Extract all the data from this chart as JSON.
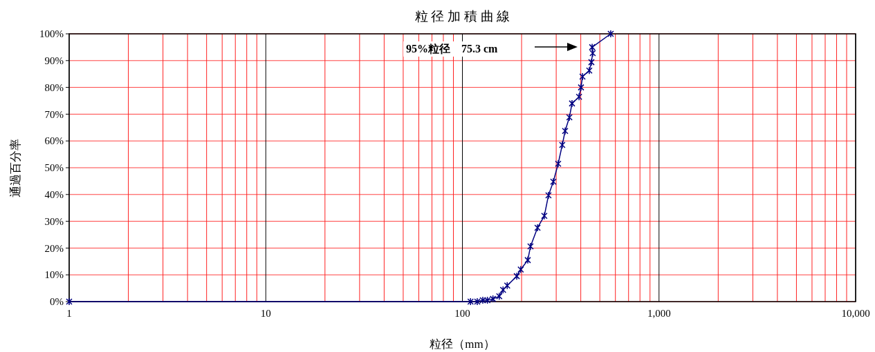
{
  "chart_data": {
    "type": "line",
    "title": "粒 径 加 積 曲 線",
    "xlabel": "粒径（mm）",
    "ylabel": "通過百分率",
    "log": "x",
    "grid": true,
    "marker": "cross",
    "line_style": "solid",
    "annotations": [
      "95%粒径　75.3 cm"
    ],
    "xlim": [
      1,
      10000
    ],
    "ylim": [
      0,
      100
    ],
    "xticks": [
      1,
      {
        "value": 2,
        "label": null
      },
      {
        "value": 3,
        "label": null
      },
      {
        "value": 4,
        "label": null
      },
      {
        "value": 5,
        "label": null
      },
      {
        "value": 6,
        "label": null
      },
      {
        "value": 7,
        "label": null
      },
      {
        "value": 8,
        "label": null
      },
      {
        "value": 9,
        "label": null
      },
      10,
      {
        "value": 20,
        "label": null
      },
      {
        "value": 30,
        "label": null
      },
      {
        "value": 40,
        "label": null
      },
      {
        "value": 50,
        "label": null
      },
      {
        "value": 60,
        "label": null
      },
      {
        "value": 70,
        "label": null
      },
      {
        "value": 80,
        "label": null
      },
      {
        "value": 90,
        "label": null
      },
      100,
      {
        "value": 200,
        "label": null
      },
      {
        "value": 300,
        "label": null
      },
      {
        "value": 400,
        "label": null
      },
      {
        "value": 500,
        "label": null
      },
      {
        "value": 600,
        "label": null
      },
      {
        "value": 700,
        "label": null
      },
      {
        "value": 800,
        "label": null
      },
      {
        "value": 900,
        "label": null
      },
      {
        "value": 1000,
        "label": "1,000"
      },
      {
        "value": 2000,
        "label": null
      },
      {
        "value": 3000,
        "label": null
      },
      {
        "value": 4000,
        "label": null
      },
      {
        "value": 5000,
        "label": null
      },
      {
        "value": 6000,
        "label": null
      },
      {
        "value": 7000,
        "label": null
      },
      {
        "value": 8000,
        "label": null
      },
      {
        "value": 9000,
        "label": null
      },
      {
        "value": 10000,
        "label": "10,000"
      }
    ],
    "yticks": [
      {
        "value": 0,
        "label": "0%"
      },
      {
        "value": 10,
        "label": "10%"
      },
      {
        "value": 20,
        "label": "20%"
      },
      {
        "value": 30,
        "label": "30%"
      },
      {
        "value": 40,
        "label": "40%"
      },
      {
        "value": 50,
        "label": "50%"
      },
      {
        "value": 60,
        "label": "60%"
      },
      {
        "value": 70,
        "label": "70%"
      },
      {
        "value": 80,
        "label": "80%"
      },
      {
        "value": 90,
        "label": "90%"
      },
      {
        "value": 100,
        "label": "100%"
      }
    ],
    "series": [
      {
        "color": "#000080",
        "x": [
          1,
          110,
          119,
          127,
          134,
          143,
          154,
          161,
          169,
          189,
          198,
          215,
          222,
          241,
          261,
          274,
          290,
          307,
          322,
          333,
          350,
          361,
          392,
          401,
          408,
          442,
          453,
          460,
          457,
          568
        ],
        "values": [
          0,
          0,
          0,
          0.5,
          0.5,
          1,
          2,
          4.4,
          6,
          9.5,
          12,
          15.5,
          20.6,
          27.6,
          32,
          39.7,
          44.8,
          51.5,
          58.5,
          63.7,
          68.8,
          74,
          76.5,
          80,
          84,
          86.3,
          89.4,
          92.8,
          95,
          100
        ]
      }
    ]
  }
}
